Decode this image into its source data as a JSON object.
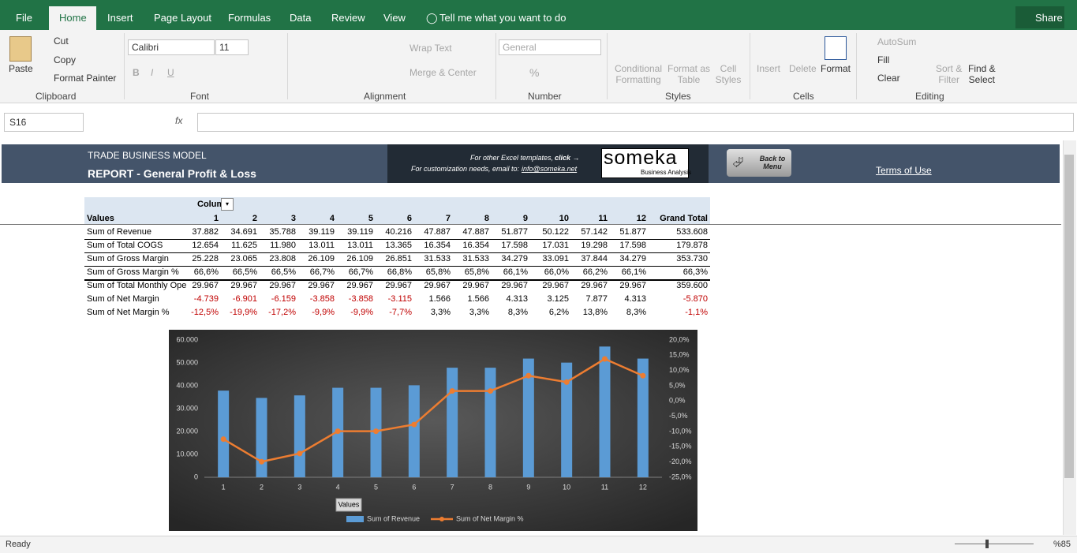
{
  "tabs": [
    "File",
    "Home",
    "Insert",
    "Page Layout",
    "Formulas",
    "Data",
    "Review",
    "View"
  ],
  "tell_me": "Tell me what you want to do",
  "share": "Share",
  "ribbon": {
    "clipboard": {
      "label": "Clipboard",
      "paste": "Paste",
      "cut": "Cut",
      "copy": "Copy",
      "format_painter": "Format Painter"
    },
    "font": {
      "label": "Font",
      "name": "Calibri",
      "size": "11",
      "bold": "B",
      "italic": "I",
      "underline": "U"
    },
    "alignment": {
      "label": "Alignment",
      "wrap_text": "Wrap Text",
      "merge_center": "Merge & Center"
    },
    "number": {
      "label": "Number",
      "format": "General",
      "percent": "%"
    },
    "styles": {
      "label": "Styles",
      "conditional": [
        "Conditional",
        "Formatting"
      ],
      "format_table": [
        "Format as",
        "Table"
      ],
      "cell_styles": [
        "Cell",
        "Styles"
      ]
    },
    "cells": {
      "label": "Cells",
      "insert": "Insert",
      "delete": "Delete",
      "format": "Format"
    },
    "editing": {
      "label": "Editing",
      "autosum": "AutoSum",
      "fill": "Fill",
      "clear": "Clear",
      "sort": [
        "Sort &",
        "Filter"
      ],
      "find": [
        "Find &",
        "Select"
      ]
    }
  },
  "name_box": "S16",
  "fx": "fx",
  "banner": {
    "kicker": "TRADE BUSINESS MODEL",
    "title": "REPORT - General Profit & Loss",
    "templates_text": "For other Excel templates,",
    "templates_link": "click →",
    "email_text": "For customization needs, email to:",
    "email": "info@someka.net",
    "logo": "someka",
    "logo_sub": "Business Analysis",
    "back": "Back to Menu",
    "terms": "Terms of Use"
  },
  "pivot": {
    "column_header": "Colum",
    "values_header": "Values",
    "columns": [
      "1",
      "2",
      "3",
      "4",
      "5",
      "6",
      "7",
      "8",
      "9",
      "10",
      "11",
      "12",
      "Grand Total"
    ],
    "rows": [
      {
        "label": "Sum of Revenue",
        "cells": [
          "37.882",
          "34.691",
          "35.788",
          "39.119",
          "39.119",
          "40.216",
          "47.887",
          "47.887",
          "51.877",
          "50.122",
          "57.142",
          "51.877",
          "533.608"
        ]
      },
      {
        "label": "Sum of Total COGS",
        "cells": [
          "12.654",
          "11.625",
          "11.980",
          "13.011",
          "13.011",
          "13.365",
          "16.354",
          "16.354",
          "17.598",
          "17.031",
          "19.298",
          "17.598",
          "179.878"
        ]
      },
      {
        "label": "Sum of Gross Margin",
        "cells": [
          "25.228",
          "23.065",
          "23.808",
          "26.109",
          "26.109",
          "26.851",
          "31.533",
          "31.533",
          "34.279",
          "33.091",
          "37.844",
          "34.279",
          "353.730"
        ]
      },
      {
        "label": "Sum of Gross Margin %",
        "cells": [
          "66,6%",
          "66,5%",
          "66,5%",
          "66,7%",
          "66,7%",
          "66,8%",
          "65,8%",
          "65,8%",
          "66,1%",
          "66,0%",
          "66,2%",
          "66,1%",
          "66,3%"
        ]
      },
      {
        "label": "Sum of Total Monthly Ope",
        "cells": [
          "29.967",
          "29.967",
          "29.967",
          "29.967",
          "29.967",
          "29.967",
          "29.967",
          "29.967",
          "29.967",
          "29.967",
          "29.967",
          "29.967",
          "359.600"
        ]
      },
      {
        "label": "Sum of Net Margin",
        "cells": [
          "-4.739",
          "-6.901",
          "-6.159",
          "-3.858",
          "-3.858",
          "-3.115",
          "1.566",
          "1.566",
          "4.313",
          "3.125",
          "7.877",
          "4.313",
          "-5.870"
        ]
      },
      {
        "label": "Sum of Net Margin %",
        "cells": [
          "-12,5%",
          "-19,9%",
          "-17,2%",
          "-9,9%",
          "-9,9%",
          "-7,7%",
          "3,3%",
          "3,3%",
          "8,3%",
          "6,2%",
          "13,8%",
          "8,3%",
          "-1,1%"
        ]
      }
    ]
  },
  "chart_data": {
    "type": "bar",
    "field_button": "Values",
    "categories": [
      "1",
      "2",
      "3",
      "4",
      "5",
      "6",
      "7",
      "8",
      "9",
      "10",
      "11",
      "12"
    ],
    "series": [
      {
        "name": "Sum of Revenue",
        "color": "#5b9bd5",
        "values": [
          37882,
          34691,
          35788,
          39119,
          39119,
          40216,
          47887,
          47887,
          51877,
          50122,
          57142,
          51877
        ]
      },
      {
        "name": "Sum of Net Margin %",
        "color": "#ed7d31",
        "type": "line",
        "axis": "y2",
        "values": [
          -12.5,
          -19.9,
          -17.2,
          -9.9,
          -9.9,
          -7.7,
          3.3,
          3.3,
          8.3,
          6.2,
          13.8,
          8.3
        ]
      }
    ],
    "ylim": [
      0,
      60000
    ],
    "yticks": [
      0,
      {
        "value": 10000,
        "label": "10.000"
      },
      {
        "value": 20000,
        "label": "20.000"
      },
      {
        "value": 30000,
        "label": "30.000"
      },
      {
        "value": 40000,
        "label": "40.000"
      },
      {
        "value": 50000,
        "label": "50.000"
      },
      {
        "value": 60000,
        "label": "60.000"
      }
    ],
    "y2lim": [
      -25,
      20
    ],
    "y2ticks": [
      {
        "value": -25,
        "label": "-25,0%"
      },
      {
        "value": -20,
        "label": "-20,0%"
      },
      {
        "value": -15,
        "label": "-15,0%"
      },
      {
        "value": -10,
        "label": "-10,0%"
      },
      {
        "value": -5,
        "label": "-5,0%"
      },
      {
        "value": 0,
        "label": "0,0%"
      },
      {
        "value": 5,
        "label": "5,0%"
      },
      {
        "value": 10,
        "label": "10,0%"
      },
      {
        "value": 15,
        "label": "15,0%"
      },
      {
        "value": 20,
        "label": "20,0%"
      }
    ],
    "legend": "bottom"
  },
  "status": {
    "ready": "Ready",
    "zoom": "%85"
  }
}
